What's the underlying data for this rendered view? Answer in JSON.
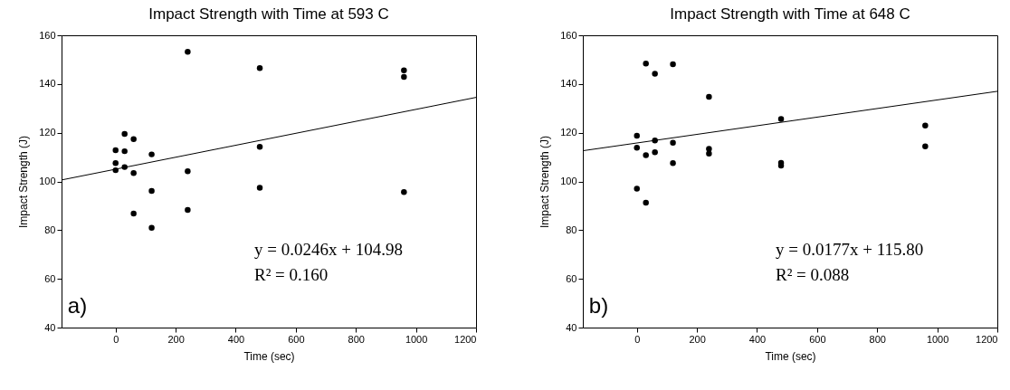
{
  "chart_data": [
    {
      "type": "scatter",
      "title": "Impact Strength with Time at 593 C",
      "xlabel": "Time (sec)",
      "ylabel": "Impact Strength (J)",
      "xlim": [
        -180,
        1200
      ],
      "xticks": [
        0,
        200,
        400,
        600,
        800,
        1000,
        1200
      ],
      "ylim": [
        40,
        160
      ],
      "yticks": [
        40,
        60,
        80,
        100,
        120,
        140,
        160
      ],
      "annotations": [
        "y = 0.0246x + 104.98",
        "R² = 0.160",
        "a)"
      ],
      "series": [
        {
          "type": "scatter",
          "marker": "circle",
          "color": "#000000",
          "x": [
            0,
            0,
            0,
            30,
            30,
            30,
            60,
            60,
            60,
            120,
            120,
            120,
            240,
            240,
            240,
            480,
            480,
            480,
            960,
            960,
            960
          ],
          "values": [
            112.8,
            107.5,
            104.6,
            119.5,
            112.4,
            105.9,
            117.4,
            103.4,
            86.8,
            111.1,
            96.1,
            81.0,
            153.2,
            104.2,
            88.3,
            146.5,
            114.2,
            97.4,
            145.6,
            142.9,
            95.6
          ]
        },
        {
          "type": "line",
          "color": "#000000",
          "x": [
            -180,
            1200
          ],
          "values": [
            100.6,
            134.5
          ]
        }
      ]
    },
    {
      "type": "scatter",
      "title": "Impact Strength with Time at 648 C",
      "xlabel": "Time (sec)",
      "ylabel": "Impact Strength (J)",
      "xlim": [
        -180,
        1200
      ],
      "xticks": [
        0,
        200,
        400,
        600,
        800,
        1000,
        1200
      ],
      "ylim": [
        40,
        160
      ],
      "yticks": [
        40,
        60,
        80,
        100,
        120,
        140,
        160
      ],
      "annotations": [
        "y = 0.0177x + 115.80",
        "R² = 0.088",
        "b)"
      ],
      "series": [
        {
          "type": "scatter",
          "marker": "circle",
          "color": "#000000",
          "x": [
            0,
            0,
            0,
            30,
            30,
            30,
            60,
            60,
            60,
            120,
            120,
            120,
            240,
            240,
            240,
            480,
            480,
            480,
            960,
            960
          ],
          "values": [
            118.8,
            113.8,
            97.0,
            148.4,
            110.8,
            91.3,
            144.2,
            116.8,
            112.0,
            148.1,
            115.9,
            107.5,
            134.7,
            113.4,
            111.4,
            125.6,
            107.6,
            106.5,
            122.9,
            114.4
          ]
        },
        {
          "type": "line",
          "color": "#000000",
          "x": [
            -180,
            1200
          ],
          "values": [
            112.6,
            137.0
          ]
        }
      ]
    }
  ]
}
